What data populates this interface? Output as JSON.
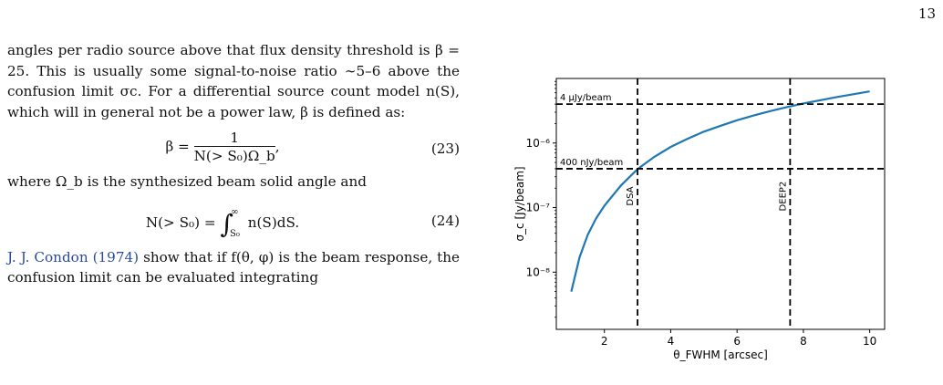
{
  "page_number": "13",
  "text": {
    "para1": "angles per radio source above that flux density threshold is β = 25. This is usually some signal-to-noise ratio ∼5–6 above the confusion limit σc. For a differential source count model n(S), which will in general not be a power law, β is defined as:",
    "eq23_lhs": "β =",
    "eq23_num": "1",
    "eq23_den": "N(> S₀)Ω_b",
    "eq23_tail": ",",
    "eq23_number": "(23)",
    "para2": "where Ω_b is the synthesized beam solid angle and",
    "eq24_lhs": "N(> S₀) =",
    "eq24_upper": "∞",
    "eq24_lower": "S₀",
    "eq24_rhs": "n(S)dS.",
    "eq24_number": "(24)",
    "para3_cite": "J. J. Condon (1974)",
    "para3": " show that if f(θ, φ) is the beam response, the confusion limit can be evaluated integrating"
  },
  "chart_data": {
    "type": "line",
    "xlabel": "θ_FWHM [arcsec]",
    "ylabel": "σ_c [Jy/beam]",
    "y_scale": "log",
    "xlim": [
      0.55,
      10.45
    ],
    "ylim": [
      1.3e-09,
      1e-05
    ],
    "x_ticks": [
      2,
      4,
      6,
      8,
      10
    ],
    "x_tick_labels": [
      "2",
      "4",
      "6",
      "8",
      "10"
    ],
    "y_ticks": [
      1e-08,
      1e-07,
      1e-06
    ],
    "y_tick_labels": [
      "10⁻⁸",
      "10⁻⁷",
      "10⁻⁶"
    ],
    "series": [
      {
        "color": "#1f77b4",
        "x": [
          1.0,
          1.25,
          1.5,
          1.75,
          2.0,
          2.5,
          3.0,
          3.5,
          4.0,
          4.5,
          5.0,
          5.5,
          6.0,
          6.5,
          7.0,
          7.5,
          8.0,
          8.5,
          9.0,
          9.5,
          10.0
        ],
        "y": [
          5e-09,
          1.7e-08,
          3.8e-08,
          6.8e-08,
          1.07e-07,
          2.2e-07,
          3.95e-07,
          6.1e-07,
          8.7e-07,
          1.16e-06,
          1.5e-06,
          1.85e-06,
          2.25e-06,
          2.67e-06,
          3.12e-06,
          3.6e-06,
          4.1e-06,
          4.6e-06,
          5.15e-06,
          5.7e-06,
          6.3e-06
        ]
      }
    ],
    "hlines": [
      {
        "y": 4e-06,
        "label": "4 μJy/beam"
      },
      {
        "y": 4e-07,
        "label": "400 nJy/beam"
      }
    ],
    "vlines": [
      {
        "x": 3.0,
        "label": "DSA"
      },
      {
        "x": 7.6,
        "label": "DEEP2"
      }
    ]
  }
}
